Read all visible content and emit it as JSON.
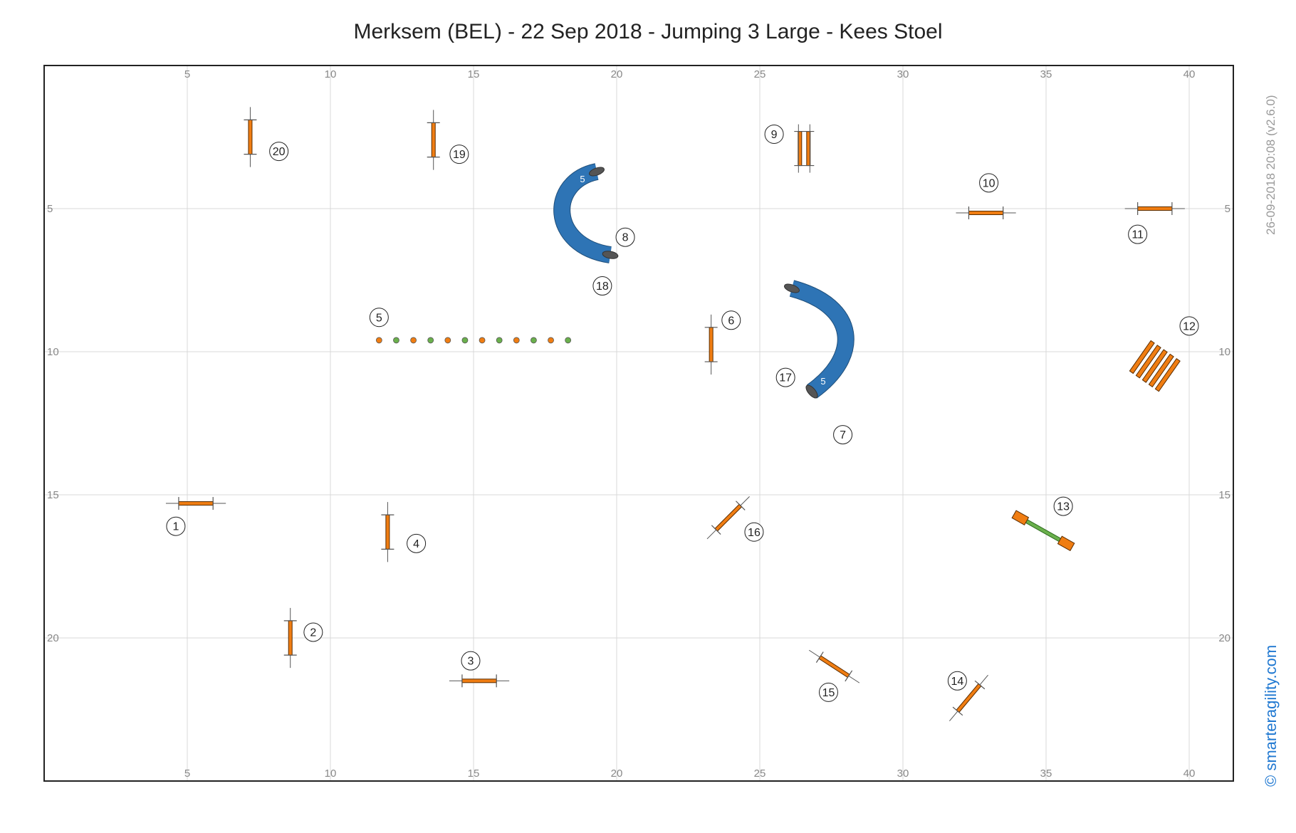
{
  "title": "Merksem (BEL) - 22 Sep 2018 - Jumping 3 Large - Kees Stoel",
  "side_caption": "26-09-2018 20:08  (v2.6.0)",
  "brand": "© smarteragility.com",
  "axes": {
    "x_ticks": [
      5,
      10,
      15,
      20,
      25,
      30,
      35,
      40
    ],
    "y_ticks": [
      5,
      10,
      15,
      20
    ]
  },
  "colors": {
    "bar": "#f07d12",
    "weave_orange": "#f07d12",
    "weave_green": "#6ab04c",
    "tunnel": "#2e74b5",
    "tunnel_end": "#555555",
    "grid": "#d9d9d9",
    "frame": "#222222",
    "brand": "#1f78d1"
  },
  "obstacles": {
    "jumps": [
      {
        "label": "1",
        "x": 5.3,
        "y": 15.3,
        "angle": 0,
        "len": 1.2,
        "lx": 4.6,
        "ly": 16.1
      },
      {
        "label": "2",
        "x": 8.6,
        "y": 20.0,
        "angle": 90,
        "len": 1.2,
        "lx": 9.4,
        "ly": 19.8
      },
      {
        "label": "3",
        "x": 15.2,
        "y": 21.5,
        "angle": 0,
        "len": 1.2,
        "lx": 14.9,
        "ly": 20.8
      },
      {
        "label": "4",
        "x": 12.0,
        "y": 16.3,
        "angle": 90,
        "len": 1.2,
        "lx": 13.0,
        "ly": 16.7
      },
      {
        "label": "6",
        "x": 23.3,
        "y": 9.75,
        "angle": 90,
        "len": 1.2,
        "lx": 24.0,
        "ly": 8.9
      },
      {
        "label": "10",
        "x": 32.9,
        "y": 5.15,
        "angle": 0,
        "len": 1.2,
        "lx": 33.0,
        "ly": 4.1
      },
      {
        "label": "11",
        "x": 38.8,
        "y": 5.0,
        "angle": 0,
        "len": 1.2,
        "lx": 38.2,
        "ly": 5.9
      },
      {
        "label": "14",
        "x": 32.3,
        "y": 22.1,
        "angle": -50,
        "len": 1.2,
        "lx": 31.9,
        "ly": 21.5
      },
      {
        "label": "15",
        "x": 27.6,
        "y": 21.0,
        "angle": 33,
        "len": 1.2,
        "lx": 27.4,
        "ly": 21.9
      },
      {
        "label": "16",
        "x": 23.9,
        "y": 15.8,
        "angle": -45,
        "len": 1.2,
        "lx": 24.8,
        "ly": 16.3
      },
      {
        "label": "19",
        "x": 13.6,
        "y": 2.6,
        "angle": 90,
        "len": 1.2,
        "lx": 14.5,
        "ly": 3.1
      },
      {
        "label": "20",
        "x": 7.2,
        "y": 2.5,
        "angle": 90,
        "len": 1.2,
        "lx": 8.2,
        "ly": 3.0
      }
    ],
    "double_jump": {
      "label": "9",
      "x": 26.55,
      "y": 2.9,
      "lx": 25.5,
      "ly": 2.4
    },
    "weave": {
      "label": "5",
      "count": 12,
      "x_start": 11.7,
      "x_end": 18.3,
      "y": 9.6,
      "lx": 11.7,
      "ly": 8.8
    },
    "tunnels": [
      {
        "label": "5",
        "lx_a": 8,
        "lx_b": 18
      },
      {
        "label": "5",
        "lx_a": 17,
        "lx_b": 7
      }
    ],
    "tunnel_labels": [
      {
        "label": "8",
        "x": 20.3,
        "y": 6.0
      },
      {
        "label": "18",
        "x": 19.5,
        "y": 7.7
      },
      {
        "label": "17",
        "x": 25.9,
        "y": 10.9
      },
      {
        "label": "7",
        "x": 27.9,
        "y": 12.9
      }
    ],
    "tire": {
      "label": "12",
      "x": 38.8,
      "y": 10.5,
      "lx": 40.0,
      "ly": 9.1
    },
    "seesaw": {
      "label": "13",
      "x1": 34.1,
      "y1": 15.8,
      "x2": 35.7,
      "y2": 16.7,
      "lx": 35.6,
      "ly": 15.4
    }
  }
}
